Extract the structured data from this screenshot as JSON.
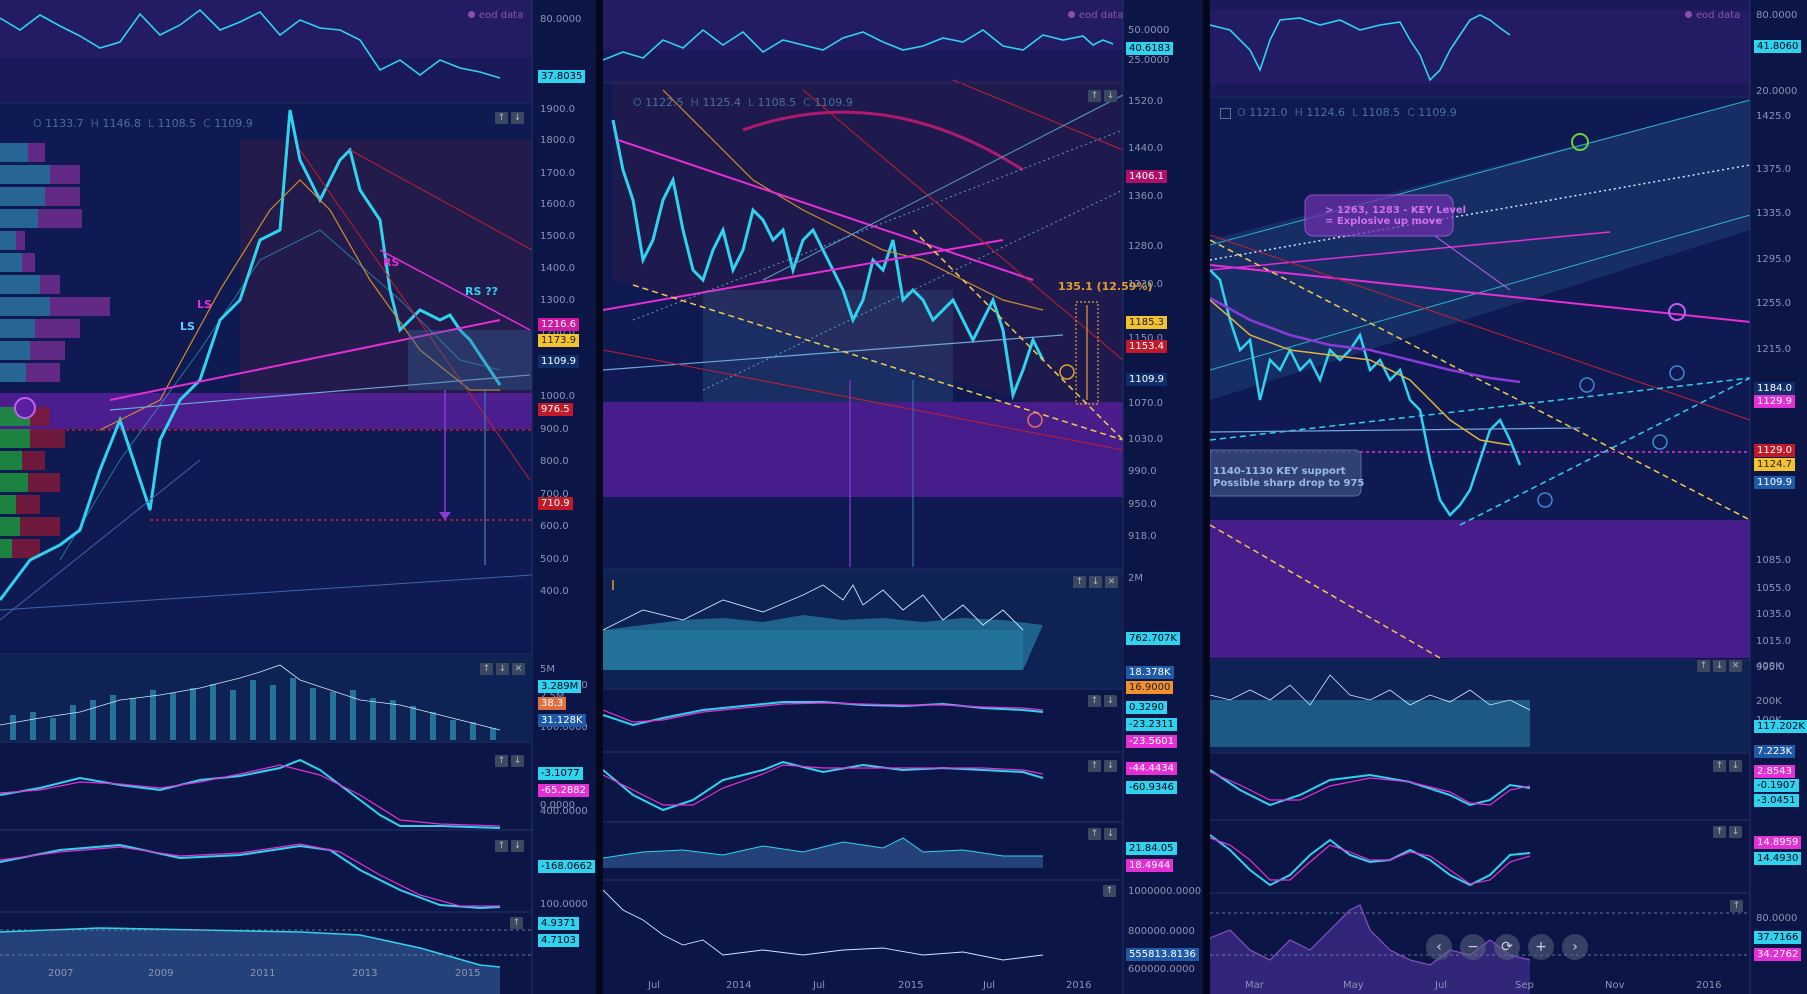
{
  "panels": [
    {
      "eod_label": "eod data",
      "ohlc": {
        "o_label": "O",
        "o": "1133.7",
        "h_label": "H",
        "h": "1146.8",
        "l_label": "L",
        "l": "1108.5",
        "c_label": "C",
        "c": "1109.9"
      },
      "x_ticks": [
        "2007",
        "2009",
        "2011",
        "2013",
        "2015"
      ],
      "osc_axis": [
        "80.0000"
      ],
      "price_axis": [
        "1900.0",
        "1800.0",
        "1700.0",
        "1600.0",
        "1500.0",
        "1400.0",
        "1300.0",
        "1200.0",
        "1100.0",
        "1000.0",
        "900.0",
        "800.0",
        "700.0",
        "600.0",
        "500.0",
        "400.0"
      ],
      "vol_axis": [
        "5M",
        "2.5M"
      ],
      "ind_axes": [
        "200.0000",
        "100.0000",
        "0.0000",
        "400.0000",
        "0.0000",
        "100.0000"
      ],
      "badges": [
        "37.8035",
        "1216.6",
        "1173.9",
        "1109.9",
        "976.5",
        "710.9",
        "3.289M",
        "38.3",
        "31.128K",
        "-3.1077",
        "-65.2882",
        "-168.0662",
        "4.9371",
        "4.7103"
      ],
      "annotations": [
        "LS",
        "LS",
        "RS",
        "RS ??"
      ]
    },
    {
      "eod_label": "eod data",
      "ohlc": {
        "o_label": "O",
        "o": "1122.5",
        "h_label": "H",
        "h": "1125.4",
        "l_label": "L",
        "l": "1108.5",
        "c_label": "C",
        "c": "1109.9"
      },
      "x_ticks": [
        "Jul",
        "2014",
        "Jul",
        "2015",
        "Jul",
        "2016"
      ],
      "osc_axis": [
        "50.0000",
        "25.0000"
      ],
      "price_axis": [
        "1520.0",
        "1440.0",
        "1360.0",
        "1280.0",
        "1230.0",
        "1150.0",
        "1070.0",
        "1030.0",
        "990.0",
        "950.0",
        "918.0"
      ],
      "vol_axis": [
        "2M",
        "1M"
      ],
      "ind_axes": [
        "1000000.0000",
        "800000.0000",
        "600000.0000"
      ],
      "badges": [
        "40.6183",
        "1406.1",
        "1185.3",
        "1153.4",
        "1109.9",
        "762.707K",
        "18.378K",
        "16.9000",
        "0.3290",
        "-23.2311",
        "-23.5601",
        "-44.4434",
        "-60.9346",
        "21.84.05",
        "18.4944",
        "555813.8136"
      ],
      "annotations": [
        "135.1 (12.59%)"
      ]
    },
    {
      "eod_label": "eod data",
      "ohlc": {
        "o_label": "O",
        "o": "1121.0",
        "h_label": "H",
        "h": "1124.6",
        "l_label": "L",
        "l": "1108.5",
        "c_label": "C",
        "c": "1109.9"
      },
      "x_ticks": [
        "Mar",
        "May",
        "Jul",
        "Sep",
        "Nov",
        "2016"
      ],
      "osc_axis": [
        "80.0000",
        "20.0000"
      ],
      "price_axis": [
        "1425.0",
        "1375.0",
        "1335.0",
        "1295.0",
        "1255.0",
        "1215.0",
        "1175.0",
        "1085.0",
        "1055.0",
        "1035.0",
        "1015.0",
        "995.0"
      ],
      "vol_axis": [
        "400K",
        "200K",
        "100K"
      ],
      "ind_axes": [
        "80.0000"
      ],
      "badges": [
        "41.8060",
        "1184.0",
        "1129.9",
        "1129.0",
        "1124.7",
        "1109.9",
        "117.202K",
        "7.223K",
        "2.8543",
        "-0.1907",
        "-3.0451",
        "14.8959",
        "14.4930",
        "37.7166",
        "34.2762"
      ],
      "annotations": [
        "> 1263, 1283 - KEY Level",
        "= Explosive up move",
        "1140-1130 KEY support",
        "Possible sharp drop to 975"
      ]
    }
  ],
  "nav_buttons": [
    "‹",
    "−",
    "⟳",
    "+",
    "›"
  ],
  "colors": {
    "bg": "#0c1646",
    "cyan": "#2fd3f0",
    "magenta": "#e52fd6",
    "orange": "#e0a030",
    "yellow": "#f2c94c",
    "purple_zone": "#4e1f8a",
    "red": "#c02030"
  }
}
